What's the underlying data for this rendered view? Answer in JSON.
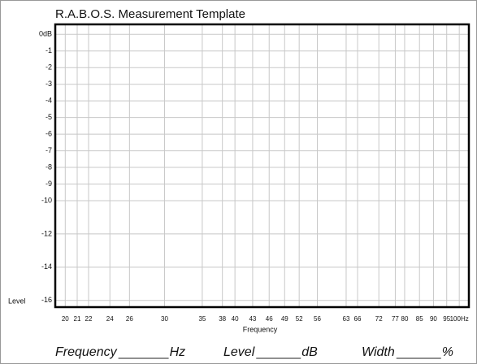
{
  "chart_data": {
    "type": "line",
    "title": "R.A.B.O.S. Measurement Template",
    "xlabel": "Frequency",
    "ylabel": "Level",
    "xscale": "log",
    "grid": true,
    "xlim": [
      19.2,
      104
    ],
    "ylim": [
      -16.4,
      0.6
    ],
    "xticks": [
      20,
      21,
      22,
      24,
      26,
      30,
      35,
      38,
      40,
      43,
      46,
      49,
      52,
      56,
      63,
      66,
      72,
      77,
      80,
      85,
      90,
      95,
      {
        "value": 100,
        "label": "100Hz"
      }
    ],
    "yticks": [
      {
        "value": 0,
        "label": "0dB"
      },
      -1,
      -2,
      -3,
      -4,
      -5,
      -6,
      -7,
      -8,
      -9,
      -10,
      -12,
      -14,
      -16
    ]
  },
  "footer": [
    {
      "label": "Frequency",
      "unit": "Hz"
    },
    {
      "label": "Level",
      "unit": "dB"
    },
    {
      "label": "Width",
      "unit": "%"
    }
  ]
}
